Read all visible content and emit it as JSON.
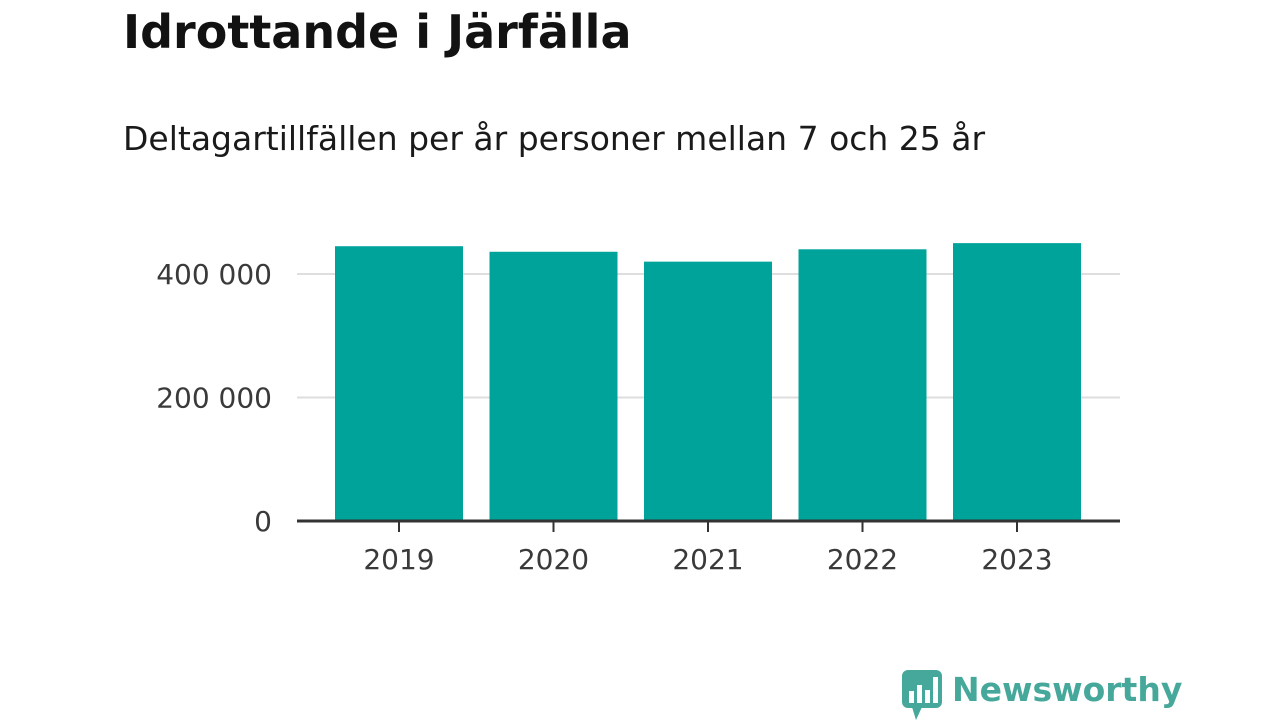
{
  "chart_data": {
    "type": "bar",
    "title": "Idrottande i Järfälla",
    "subtitle": "Deltagartillfällen per år personer mellan 7 och 25 år",
    "categories": [
      "2019",
      "2020",
      "2021",
      "2022",
      "2023"
    ],
    "values": [
      445000,
      436000,
      420000,
      440000,
      450000
    ],
    "yticks": [
      0,
      200000,
      400000
    ],
    "ytick_labels": [
      "0",
      "200 000",
      "400 000"
    ],
    "ylim": [
      0,
      450000
    ],
    "xlabel": "",
    "ylabel": "",
    "grid": true,
    "legend": "none",
    "bar_color": "#00a39a"
  },
  "branding": {
    "logo_text": "Newsworthy",
    "logo_icon": "bar-chart-speech-bubble-icon",
    "logo_color": "#46a89b"
  }
}
